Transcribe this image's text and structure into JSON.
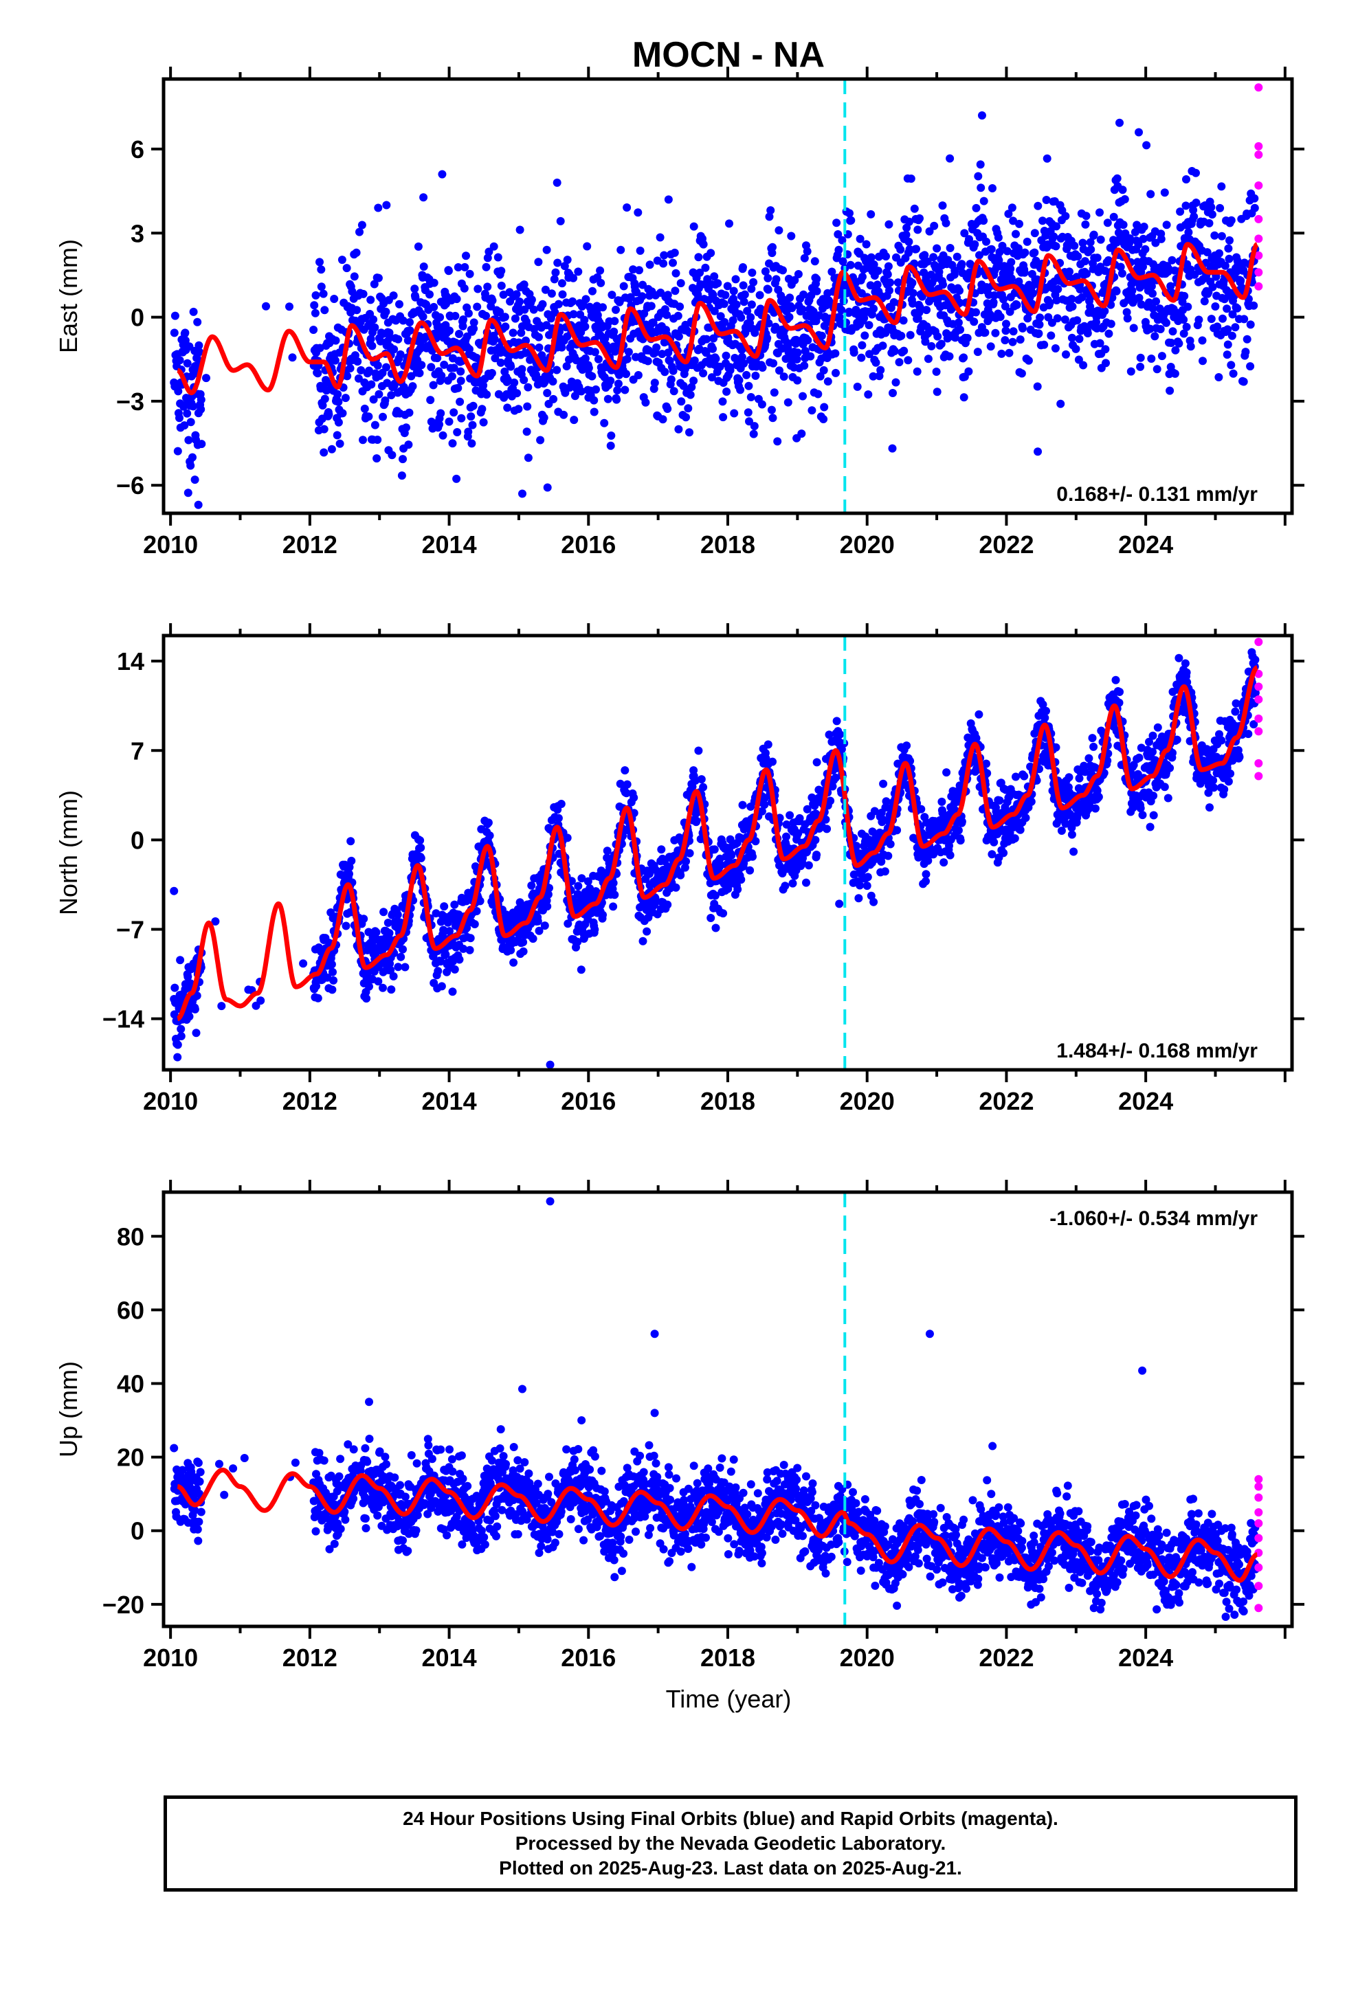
{
  "title": "MOCN - NA",
  "colors": {
    "final_orbits": "#0000ff",
    "rapid_orbits": "#ff00ff",
    "model_fit": "#ff0000",
    "equipment_change": "#00e5ee",
    "frame": "#000000"
  },
  "x_axis": {
    "label": "Time (year)",
    "range": [
      2009.9,
      2026.1
    ],
    "ticks": [
      "2010",
      "2012",
      "2014",
      "2016",
      "2018",
      "2020",
      "2022",
      "2024"
    ],
    "tick_values": [
      2010,
      2012,
      2014,
      2016,
      2018,
      2020,
      2022,
      2024
    ]
  },
  "footer": {
    "line1": "24 Hour Positions Using Final Orbits (blue) and Rapid Orbits (magenta).",
    "line2": "Processed by the Nevada Geodetic Laboratory.",
    "line3": "Plotted on 2025-Aug-23. Last data on 2025-Aug-21."
  },
  "chart_data": [
    {
      "type": "scatter",
      "name": "east",
      "ylabel": "East (mm)",
      "ylim": [
        -7.0,
        8.5
      ],
      "yticks": [
        -6,
        -3,
        0,
        3,
        6
      ],
      "ytick_labels": [
        "−6",
        "−3",
        "0",
        "3",
        "6"
      ],
      "velocity": "0.168+/- 0.131 mm/yr",
      "velocity_position": "bottom-right",
      "equipment_change_year": 2019.68,
      "fit": {
        "intercept": -1.8,
        "slope": 0.168,
        "t0": 2010.1,
        "annual_amp": 1.0,
        "phase": 0.55,
        "semi_amp": 0.4,
        "semi_phase": 0.1,
        "extra_trend": 0.17
      },
      "scatter_noise": 1.4,
      "fit_points": [
        [
          2010.1,
          -1.9
        ],
        [
          2010.3,
          -2.7
        ],
        [
          2010.6,
          -0.7
        ],
        [
          2010.9,
          -1.9
        ],
        [
          2011.1,
          -1.7
        ],
        [
          2011.4,
          -2.6
        ],
        [
          2011.7,
          -0.5
        ],
        [
          2012.0,
          -1.6
        ],
        [
          2012.2,
          -1.6
        ],
        [
          2012.4,
          -2.5
        ],
        [
          2012.6,
          -0.3
        ],
        [
          2012.9,
          -1.5
        ],
        [
          2013.1,
          -1.3
        ],
        [
          2013.3,
          -2.3
        ],
        [
          2013.6,
          -0.2
        ],
        [
          2013.9,
          -1.3
        ],
        [
          2014.1,
          -1.1
        ],
        [
          2014.4,
          -2.1
        ],
        [
          2014.6,
          -0.1
        ],
        [
          2014.9,
          -1.2
        ],
        [
          2015.1,
          -1.0
        ],
        [
          2015.4,
          -1.9
        ],
        [
          2015.6,
          0.1
        ],
        [
          2015.9,
          -1.0
        ],
        [
          2016.1,
          -0.9
        ],
        [
          2016.4,
          -1.8
        ],
        [
          2016.6,
          0.3
        ],
        [
          2016.9,
          -0.8
        ],
        [
          2017.1,
          -0.7
        ],
        [
          2017.4,
          -1.6
        ],
        [
          2017.6,
          0.5
        ],
        [
          2017.9,
          -0.6
        ],
        [
          2018.1,
          -0.5
        ],
        [
          2018.4,
          -1.4
        ],
        [
          2018.6,
          0.6
        ],
        [
          2018.9,
          -0.4
        ],
        [
          2019.1,
          -0.3
        ],
        [
          2019.4,
          -1.1
        ],
        [
          2019.65,
          1.6
        ],
        [
          2019.9,
          0.6
        ],
        [
          2020.1,
          0.7
        ],
        [
          2020.4,
          -0.2
        ],
        [
          2020.6,
          1.8
        ],
        [
          2020.9,
          0.8
        ],
        [
          2021.1,
          0.9
        ],
        [
          2021.4,
          0.1
        ],
        [
          2021.6,
          2.0
        ],
        [
          2021.9,
          1.0
        ],
        [
          2022.1,
          1.1
        ],
        [
          2022.4,
          0.2
        ],
        [
          2022.6,
          2.2
        ],
        [
          2022.9,
          1.2
        ],
        [
          2023.1,
          1.3
        ],
        [
          2023.4,
          0.4
        ],
        [
          2023.6,
          2.4
        ],
        [
          2023.9,
          1.4
        ],
        [
          2024.1,
          1.5
        ],
        [
          2024.4,
          0.6
        ],
        [
          2024.6,
          2.6
        ],
        [
          2024.9,
          1.6
        ],
        [
          2025.1,
          1.6
        ],
        [
          2025.4,
          0.7
        ],
        [
          2025.6,
          2.6
        ]
      ],
      "outliers": [
        [
          2010.4,
          -6.7
        ],
        [
          2010.35,
          -5.8
        ],
        [
          2013.9,
          5.1
        ],
        [
          2015.05,
          -6.3
        ],
        [
          2015.55,
          4.8
        ],
        [
          2017.15,
          4.2
        ],
        [
          2021.65,
          7.2
        ],
        [
          2022.45,
          -4.8
        ],
        [
          2023.9,
          6.6
        ],
        [
          2013.1,
          4.0
        ]
      ],
      "rapid_points": [
        [
          2025.6,
          8.2
        ],
        [
          2025.6,
          6.1
        ],
        [
          2025.6,
          5.8
        ],
        [
          2025.6,
          4.7
        ],
        [
          2025.6,
          3.5
        ],
        [
          2025.6,
          2.8
        ],
        [
          2025.6,
          2.2
        ],
        [
          2025.6,
          1.6
        ],
        [
          2025.6,
          1.1
        ]
      ]
    },
    {
      "type": "scatter",
      "name": "north",
      "ylabel": "North (mm)",
      "ylim": [
        -18.0,
        16.0
      ],
      "yticks": [
        -14,
        -7,
        0,
        7,
        14
      ],
      "ytick_labels": [
        "−14",
        "−7",
        "0",
        "7",
        "14"
      ],
      "velocity": "1.484+/- 0.168 mm/yr",
      "velocity_position": "bottom-right",
      "equipment_change_year": 2019.68,
      "scatter_noise": 1.3,
      "fit_points": [
        [
          2010.1,
          -14.0
        ],
        [
          2010.3,
          -12.0
        ],
        [
          2010.55,
          -6.5
        ],
        [
          2010.8,
          -12.5
        ],
        [
          2011.0,
          -13.0
        ],
        [
          2011.25,
          -12.0
        ],
        [
          2011.55,
          -5.0
        ],
        [
          2011.8,
          -11.5
        ],
        [
          2012.1,
          -10.5
        ],
        [
          2012.3,
          -8.5
        ],
        [
          2012.55,
          -3.5
        ],
        [
          2012.8,
          -10.0
        ],
        [
          2013.1,
          -9.0
        ],
        [
          2013.3,
          -7.5
        ],
        [
          2013.55,
          -2.0
        ],
        [
          2013.8,
          -8.5
        ],
        [
          2014.1,
          -7.5
        ],
        [
          2014.3,
          -5.5
        ],
        [
          2014.55,
          -0.5
        ],
        [
          2014.8,
          -7.5
        ],
        [
          2015.1,
          -6.5
        ],
        [
          2015.3,
          -4.5
        ],
        [
          2015.55,
          1.0
        ],
        [
          2015.8,
          -6.0
        ],
        [
          2016.1,
          -5.0
        ],
        [
          2016.3,
          -3.0
        ],
        [
          2016.55,
          2.5
        ],
        [
          2016.8,
          -4.5
        ],
        [
          2017.1,
          -3.5
        ],
        [
          2017.3,
          -1.5
        ],
        [
          2017.55,
          3.8
        ],
        [
          2017.8,
          -3.0
        ],
        [
          2018.1,
          -2.0
        ],
        [
          2018.3,
          0.0
        ],
        [
          2018.55,
          5.5
        ],
        [
          2018.8,
          -1.5
        ],
        [
          2019.1,
          -0.5
        ],
        [
          2019.3,
          1.5
        ],
        [
          2019.55,
          7.0
        ],
        [
          2019.85,
          -2.0
        ],
        [
          2020.1,
          -1.0
        ],
        [
          2020.3,
          0.5
        ],
        [
          2020.55,
          6.0
        ],
        [
          2020.8,
          -0.5
        ],
        [
          2021.1,
          0.5
        ],
        [
          2021.3,
          2.0
        ],
        [
          2021.55,
          7.5
        ],
        [
          2021.8,
          1.0
        ],
        [
          2022.1,
          2.0
        ],
        [
          2022.3,
          3.5
        ],
        [
          2022.55,
          9.0
        ],
        [
          2022.8,
          2.5
        ],
        [
          2023.1,
          3.5
        ],
        [
          2023.3,
          5.0
        ],
        [
          2023.55,
          10.5
        ],
        [
          2023.8,
          4.0
        ],
        [
          2024.1,
          5.0
        ],
        [
          2024.3,
          7.0
        ],
        [
          2024.55,
          12.0
        ],
        [
          2024.8,
          5.5
        ],
        [
          2025.1,
          6.0
        ],
        [
          2025.3,
          8.0
        ],
        [
          2025.6,
          13.5
        ]
      ],
      "outliers": [
        [
          2010.05,
          -4.0
        ],
        [
          2015.45,
          -17.6
        ],
        [
          2019.6,
          -5.0
        ]
      ],
      "rapid_points": [
        [
          2025.6,
          15.5
        ],
        [
          2025.6,
          13.0
        ],
        [
          2025.6,
          12.0
        ],
        [
          2025.6,
          11.0
        ],
        [
          2025.6,
          9.5
        ],
        [
          2025.6,
          8.5
        ],
        [
          2025.6,
          6.0
        ],
        [
          2025.6,
          5.0
        ]
      ]
    },
    {
      "type": "scatter",
      "name": "up",
      "ylabel": "Up (mm)",
      "ylim": [
        -26,
        92
      ],
      "yticks": [
        -20,
        0,
        20,
        40,
        60,
        80
      ],
      "ytick_labels": [
        "−20",
        "0",
        "20",
        "40",
        "60",
        "80"
      ],
      "velocity": "-1.060+/- 0.534 mm/yr",
      "velocity_position": "top-right",
      "equipment_change_year": 2019.68,
      "scatter_noise": 5.0,
      "fit_points": [
        [
          2010.1,
          12.0
        ],
        [
          2010.35,
          7.0
        ],
        [
          2010.75,
          16.5
        ],
        [
          2011.0,
          12.0
        ],
        [
          2011.35,
          5.5
        ],
        [
          2011.75,
          15.5
        ],
        [
          2012.0,
          12.0
        ],
        [
          2012.35,
          5.0
        ],
        [
          2012.75,
          15.0
        ],
        [
          2013.0,
          11.5
        ],
        [
          2013.35,
          4.5
        ],
        [
          2013.75,
          14.0
        ],
        [
          2014.0,
          10.5
        ],
        [
          2014.35,
          3.5
        ],
        [
          2014.75,
          12.5
        ],
        [
          2015.0,
          9.5
        ],
        [
          2015.35,
          2.5
        ],
        [
          2015.75,
          11.5
        ],
        [
          2016.0,
          8.5
        ],
        [
          2016.35,
          1.5
        ],
        [
          2016.75,
          10.5
        ],
        [
          2017.0,
          7.5
        ],
        [
          2017.35,
          0.5
        ],
        [
          2017.75,
          9.5
        ],
        [
          2018.0,
          6.5
        ],
        [
          2018.35,
          -0.5
        ],
        [
          2018.75,
          8.5
        ],
        [
          2019.0,
          5.5
        ],
        [
          2019.35,
          -1.5
        ],
        [
          2019.65,
          5.0
        ],
        [
          2019.75,
          2.0
        ],
        [
          2020.0,
          -1.0
        ],
        [
          2020.35,
          -8.5
        ],
        [
          2020.75,
          1.5
        ],
        [
          2021.0,
          -2.0
        ],
        [
          2021.35,
          -9.5
        ],
        [
          2021.75,
          0.5
        ],
        [
          2022.0,
          -3.0
        ],
        [
          2022.35,
          -10.5
        ],
        [
          2022.75,
          -0.5
        ],
        [
          2023.0,
          -4.0
        ],
        [
          2023.35,
          -11.5
        ],
        [
          2023.75,
          -1.5
        ],
        [
          2024.0,
          -5.0
        ],
        [
          2024.35,
          -12.5
        ],
        [
          2024.75,
          -2.5
        ],
        [
          2025.0,
          -6.0
        ],
        [
          2025.35,
          -13.5
        ],
        [
          2025.6,
          -6.5
        ]
      ],
      "outliers": [
        [
          2015.45,
          89.5
        ],
        [
          2016.95,
          53.5
        ],
        [
          2016.95,
          32.0
        ],
        [
          2015.05,
          38.5
        ],
        [
          2020.9,
          53.5
        ],
        [
          2023.95,
          43.5
        ],
        [
          2021.8,
          23.0
        ],
        [
          2015.9,
          30.0
        ],
        [
          2012.85,
          35.0
        ]
      ],
      "rapid_points": [
        [
          2025.6,
          14.0
        ],
        [
          2025.6,
          12.0
        ],
        [
          2025.6,
          9.0
        ],
        [
          2025.6,
          5.0
        ],
        [
          2025.6,
          2.0
        ],
        [
          2025.6,
          -2.0
        ],
        [
          2025.6,
          -6.0
        ],
        [
          2025.6,
          -10.0
        ],
        [
          2025.6,
          -15.0
        ],
        [
          2025.6,
          -21.0
        ]
      ]
    }
  ]
}
